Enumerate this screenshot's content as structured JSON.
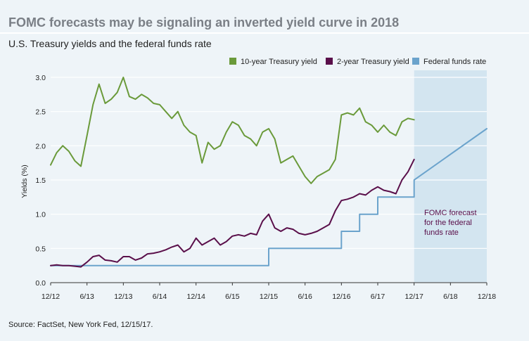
{
  "title": "FOMC forecasts may be signaling an inverted yield curve in 2018",
  "subtitle": "U.S. Treasury yields and the federal funds rate",
  "source": "Source: FactSet, New York Fed, 12/15/17.",
  "annotation": [
    "FOMC forecast",
    "for the federal",
    "funds rate"
  ],
  "colors": {
    "background": "#eef4f8",
    "ten_year": "#6a9a3a",
    "two_year": "#5a0f4a",
    "fed_funds": "#6ba3cc",
    "forecast_shade": "#d3e5f0",
    "title": "#7a7f86"
  },
  "chart_data": {
    "type": "line",
    "xlabel": "",
    "ylabel": "Yields (%)",
    "ylim": [
      0,
      3.0
    ],
    "yticks": [
      "0.0",
      "0.5",
      "1.0",
      "1.5",
      "2.0",
      "2.5",
      "3.0"
    ],
    "xlim": [
      2012.917,
      2018.917
    ],
    "xticks": [
      {
        "label": "12/12",
        "x": 2012.917
      },
      {
        "label": "6/13",
        "x": 2013.417
      },
      {
        "label": "12/13",
        "x": 2013.917
      },
      {
        "label": "6/14",
        "x": 2014.417
      },
      {
        "label": "12/14",
        "x": 2014.917
      },
      {
        "label": "6/15",
        "x": 2015.417
      },
      {
        "label": "12/15",
        "x": 2015.917
      },
      {
        "label": "6/16",
        "x": 2016.417
      },
      {
        "label": "12/16",
        "x": 2016.917
      },
      {
        "label": "6/17",
        "x": 2017.417
      },
      {
        "label": "12/17",
        "x": 2017.917
      },
      {
        "label": "6/18",
        "x": 2018.417
      },
      {
        "label": "12/18",
        "x": 2018.917
      }
    ],
    "forecast_start": 2017.917,
    "legend_position": "top-right",
    "series": [
      {
        "name": "10-year Treasury yield",
        "style": "line",
        "x": [
          2012.917,
          2013.0,
          2013.083,
          2013.167,
          2013.25,
          2013.333,
          2013.417,
          2013.5,
          2013.583,
          2013.667,
          2013.75,
          2013.833,
          2013.917,
          2014.0,
          2014.083,
          2014.167,
          2014.25,
          2014.333,
          2014.417,
          2014.5,
          2014.583,
          2014.667,
          2014.75,
          2014.833,
          2014.917,
          2015.0,
          2015.083,
          2015.167,
          2015.25,
          2015.333,
          2015.417,
          2015.5,
          2015.583,
          2015.667,
          2015.75,
          2015.833,
          2015.917,
          2016.0,
          2016.083,
          2016.167,
          2016.25,
          2016.333,
          2016.417,
          2016.5,
          2016.583,
          2016.667,
          2016.75,
          2016.833,
          2016.917,
          2017.0,
          2017.083,
          2017.167,
          2017.25,
          2017.333,
          2017.417,
          2017.5,
          2017.583,
          2017.667,
          2017.75,
          2017.833,
          2017.917
        ],
        "values": [
          1.72,
          1.9,
          2.0,
          1.92,
          1.78,
          1.7,
          2.15,
          2.6,
          2.9,
          2.62,
          2.68,
          2.78,
          3.0,
          2.72,
          2.68,
          2.75,
          2.7,
          2.62,
          2.6,
          2.5,
          2.4,
          2.5,
          2.3,
          2.2,
          2.15,
          1.75,
          2.05,
          1.95,
          2.0,
          2.2,
          2.35,
          2.3,
          2.15,
          2.1,
          2.0,
          2.2,
          2.25,
          2.1,
          1.75,
          1.8,
          1.85,
          1.7,
          1.55,
          1.45,
          1.55,
          1.6,
          1.65,
          1.8,
          2.45,
          2.48,
          2.45,
          2.55,
          2.35,
          2.3,
          2.2,
          2.3,
          2.2,
          2.15,
          2.35,
          2.4,
          2.38
        ]
      },
      {
        "name": "2-year Treasury yield",
        "style": "line",
        "x": [
          2012.917,
          2013.0,
          2013.083,
          2013.167,
          2013.25,
          2013.333,
          2013.417,
          2013.5,
          2013.583,
          2013.667,
          2013.75,
          2013.833,
          2013.917,
          2014.0,
          2014.083,
          2014.167,
          2014.25,
          2014.333,
          2014.417,
          2014.5,
          2014.583,
          2014.667,
          2014.75,
          2014.833,
          2014.917,
          2015.0,
          2015.083,
          2015.167,
          2015.25,
          2015.333,
          2015.417,
          2015.5,
          2015.583,
          2015.667,
          2015.75,
          2015.833,
          2015.917,
          2016.0,
          2016.083,
          2016.167,
          2016.25,
          2016.333,
          2016.417,
          2016.5,
          2016.583,
          2016.667,
          2016.75,
          2016.833,
          2016.917,
          2017.0,
          2017.083,
          2017.167,
          2017.25,
          2017.333,
          2017.417,
          2017.5,
          2017.583,
          2017.667,
          2017.75,
          2017.833,
          2017.917
        ],
        "values": [
          0.25,
          0.26,
          0.25,
          0.25,
          0.24,
          0.23,
          0.3,
          0.38,
          0.4,
          0.33,
          0.32,
          0.3,
          0.38,
          0.38,
          0.33,
          0.36,
          0.42,
          0.43,
          0.45,
          0.48,
          0.52,
          0.55,
          0.45,
          0.5,
          0.65,
          0.55,
          0.6,
          0.65,
          0.55,
          0.6,
          0.68,
          0.7,
          0.68,
          0.72,
          0.7,
          0.9,
          1.0,
          0.8,
          0.75,
          0.8,
          0.78,
          0.72,
          0.7,
          0.72,
          0.75,
          0.8,
          0.85,
          1.05,
          1.2,
          1.22,
          1.25,
          1.3,
          1.28,
          1.35,
          1.4,
          1.35,
          1.33,
          1.3,
          1.5,
          1.62,
          1.8
        ]
      },
      {
        "name": "Federal funds rate",
        "style": "step",
        "x": [
          2012.917,
          2015.917,
          2015.917,
          2016.917,
          2016.917,
          2017.167,
          2017.167,
          2017.417,
          2017.417,
          2017.917,
          2017.917,
          2018.917
        ],
        "values": [
          0.25,
          0.25,
          0.5,
          0.5,
          0.75,
          0.75,
          1.0,
          1.0,
          1.25,
          1.25,
          1.5,
          2.25
        ]
      }
    ]
  }
}
